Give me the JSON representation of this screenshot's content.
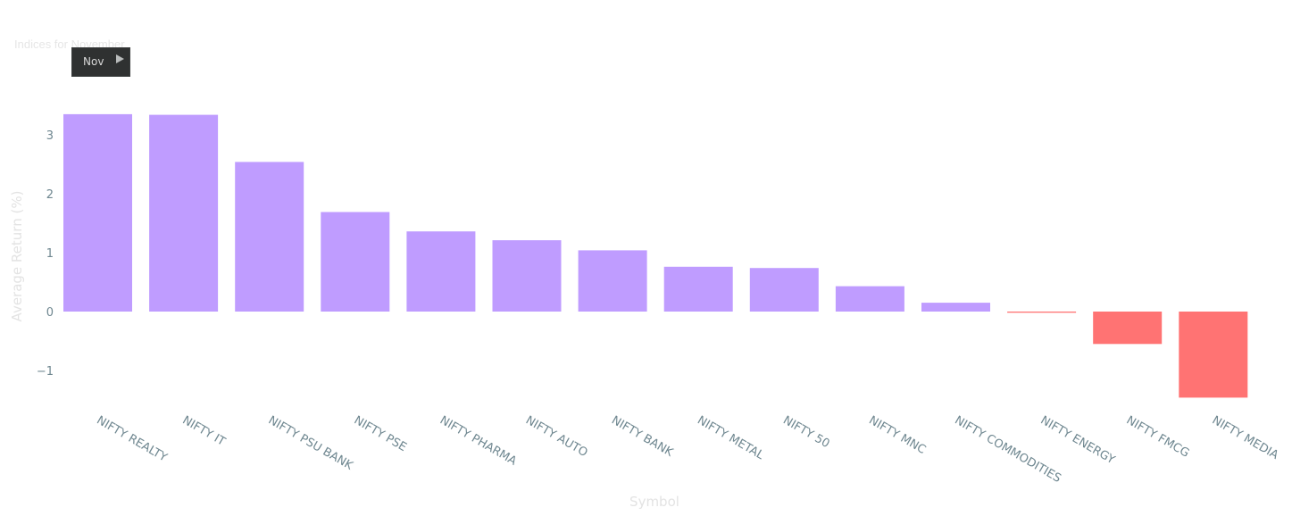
{
  "chart_data": {
    "type": "bar",
    "title": "Indices for November",
    "xlabel": "Symbol",
    "ylabel": "Average Return (%)",
    "categories": [
      "NIFTY REALTY",
      "NIFTY IT",
      "NIFTY PSU BANK",
      "NIFTY PSE",
      "NIFTY PHARMA",
      "NIFTY AUTO",
      "NIFTY BANK",
      "NIFTY METAL",
      "NIFTY 50",
      "NIFTY MNC",
      "NIFTY COMMODITIES",
      "NIFTY ENERGY",
      "NIFTY FMCG",
      "NIFTY MEDIA"
    ],
    "values": [
      3.35,
      3.34,
      2.54,
      1.69,
      1.36,
      1.21,
      1.04,
      0.76,
      0.74,
      0.43,
      0.15,
      -0.02,
      -0.55,
      -1.46
    ],
    "yticks": [
      -1,
      0,
      1,
      2,
      3
    ],
    "ytick_labels": [
      "−1",
      "0",
      "1",
      "2",
      "3"
    ],
    "ylim": [
      -1.55,
      3.6
    ],
    "grid": false,
    "colors": {
      "positive": "#bf9cff",
      "negative": "#ff7373"
    }
  },
  "slider": {
    "label": "Nov",
    "play_icon": "play-icon"
  }
}
